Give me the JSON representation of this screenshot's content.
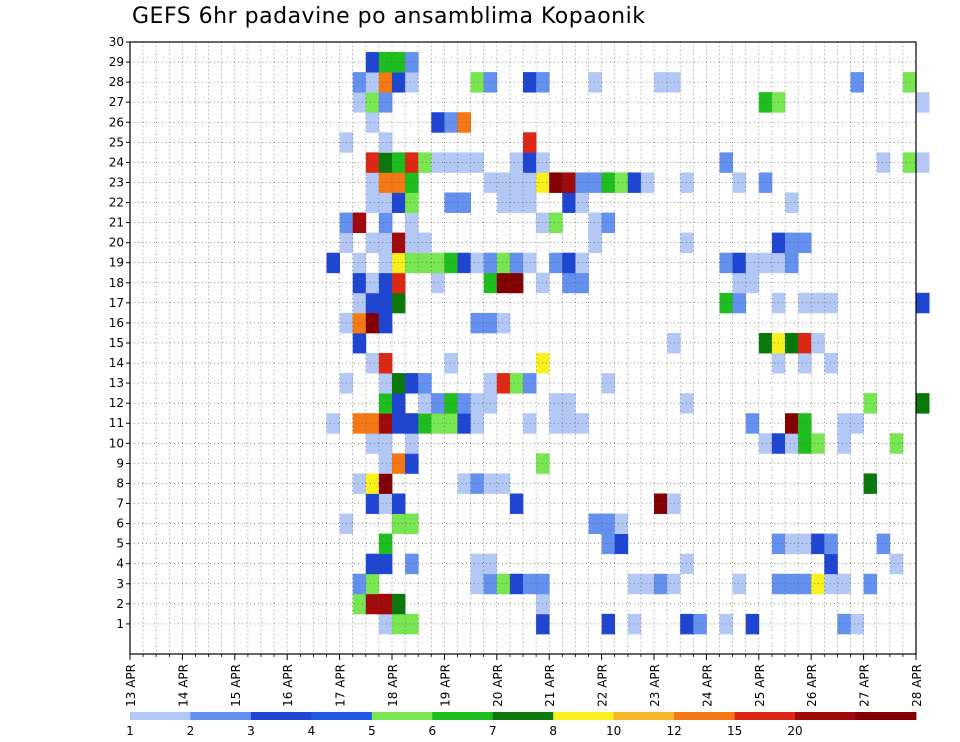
{
  "title": "GEFS 6hr padavine po ansamblima Kopaonik",
  "chart_data": {
    "type": "heatmap",
    "title": "GEFS 6hr padavine po ansamblima Kopaonik",
    "x_tick_labels": [
      "13 APR",
      "14 APR",
      "15 APR",
      "16 APR",
      "17 APR",
      "18 APR",
      "19 APR",
      "20 APR",
      "21 APR",
      "22 APR",
      "23 APR",
      "24 APR",
      "25 APR",
      "26 APR",
      "27 APR",
      "28 APR"
    ],
    "y_tick_labels": [
      "1",
      "2",
      "3",
      "4",
      "5",
      "6",
      "7",
      "8",
      "9",
      "10",
      "11",
      "12",
      "13",
      "14",
      "15",
      "16",
      "17",
      "18",
      "19",
      "20",
      "21",
      "22",
      "23",
      "24",
      "25",
      "26",
      "27",
      "28",
      "29",
      "30"
    ],
    "x_steps_per_day": 4,
    "grid": true,
    "colorbar": {
      "labels": [
        "1",
        "2",
        "3",
        "4",
        "5",
        "6",
        "7",
        "8",
        "10",
        "12",
        "15",
        "20"
      ],
      "colors": [
        "#b4c8f5",
        "#6490f0",
        "#1e46d2",
        "#1e5ae6",
        "#78e650",
        "#1ebe1e",
        "#0a780a",
        "#faf01e",
        "#fab428",
        "#f57814",
        "#dc2814",
        "#a00a0a",
        "#820000"
      ]
    },
    "cells": [
      [
        1,
        19,
        1
      ],
      [
        1,
        20,
        5
      ],
      [
        1,
        21,
        5
      ],
      [
        1,
        31,
        3
      ],
      [
        1,
        36,
        3
      ],
      [
        1,
        38,
        1
      ],
      [
        1,
        42,
        3
      ],
      [
        1,
        43,
        2
      ],
      [
        1,
        45,
        1
      ],
      [
        1,
        47,
        3
      ],
      [
        1,
        54,
        2
      ],
      [
        1,
        55,
        1
      ],
      [
        2,
        17,
        5
      ],
      [
        2,
        18,
        12
      ],
      [
        2,
        19,
        12
      ],
      [
        2,
        20,
        7
      ],
      [
        2,
        31,
        1
      ],
      [
        3,
        17,
        2
      ],
      [
        3,
        18,
        5
      ],
      [
        3,
        26,
        1
      ],
      [
        3,
        27,
        2
      ],
      [
        3,
        28,
        5
      ],
      [
        3,
        29,
        3
      ],
      [
        3,
        30,
        2
      ],
      [
        3,
        31,
        2
      ],
      [
        3,
        38,
        1
      ],
      [
        3,
        39,
        1
      ],
      [
        3,
        40,
        2
      ],
      [
        3,
        41,
        1
      ],
      [
        3,
        46,
        1
      ],
      [
        3,
        49,
        2
      ],
      [
        3,
        50,
        2
      ],
      [
        3,
        51,
        2
      ],
      [
        3,
        52,
        8
      ],
      [
        3,
        53,
        1
      ],
      [
        3,
        54,
        1
      ],
      [
        3,
        56,
        2
      ],
      [
        4,
        18,
        3
      ],
      [
        4,
        19,
        3
      ],
      [
        4,
        21,
        2
      ],
      [
        4,
        26,
        1
      ],
      [
        4,
        27,
        1
      ],
      [
        4,
        42,
        1
      ],
      [
        4,
        53,
        3
      ],
      [
        4,
        58,
        1
      ],
      [
        5,
        19,
        6
      ],
      [
        5,
        36,
        2
      ],
      [
        5,
        37,
        3
      ],
      [
        5,
        49,
        2
      ],
      [
        5,
        50,
        1
      ],
      [
        5,
        51,
        1
      ],
      [
        5,
        52,
        3
      ],
      [
        5,
        53,
        2
      ],
      [
        5,
        57,
        2
      ],
      [
        6,
        16,
        1
      ],
      [
        6,
        20,
        5
      ],
      [
        6,
        21,
        5
      ],
      [
        6,
        35,
        2
      ],
      [
        6,
        36,
        2
      ],
      [
        6,
        37,
        1
      ],
      [
        7,
        18,
        3
      ],
      [
        7,
        19,
        1
      ],
      [
        7,
        20,
        3
      ],
      [
        7,
        29,
        3
      ],
      [
        7,
        40,
        13
      ],
      [
        7,
        41,
        1
      ],
      [
        8,
        17,
        1
      ],
      [
        8,
        18,
        8
      ],
      [
        8,
        19,
        13
      ],
      [
        8,
        25,
        1
      ],
      [
        8,
        26,
        2
      ],
      [
        8,
        27,
        1
      ],
      [
        8,
        28,
        1
      ],
      [
        8,
        56,
        7
      ],
      [
        9,
        19,
        1
      ],
      [
        9,
        20,
        10
      ],
      [
        9,
        21,
        3
      ],
      [
        9,
        31,
        5
      ],
      [
        10,
        18,
        1
      ],
      [
        10,
        19,
        1
      ],
      [
        10,
        21,
        1
      ],
      [
        10,
        48,
        1
      ],
      [
        10,
        49,
        3
      ],
      [
        10,
        50,
        1
      ],
      [
        10,
        51,
        6
      ],
      [
        10,
        52,
        5
      ],
      [
        10,
        54,
        1
      ],
      [
        10,
        58,
        5
      ],
      [
        11,
        15,
        1
      ],
      [
        11,
        17,
        10
      ],
      [
        11,
        18,
        10
      ],
      [
        11,
        19,
        12
      ],
      [
        11,
        20,
        3
      ],
      [
        11,
        21,
        3
      ],
      [
        11,
        22,
        6
      ],
      [
        11,
        23,
        5
      ],
      [
        11,
        24,
        5
      ],
      [
        11,
        25,
        3
      ],
      [
        11,
        26,
        1
      ],
      [
        11,
        30,
        1
      ],
      [
        11,
        32,
        1
      ],
      [
        11,
        33,
        1
      ],
      [
        11,
        34,
        1
      ],
      [
        11,
        47,
        2
      ],
      [
        11,
        50,
        13
      ],
      [
        11,
        51,
        6
      ],
      [
        11,
        54,
        1
      ],
      [
        11,
        55,
        1
      ],
      [
        12,
        19,
        6
      ],
      [
        12,
        20,
        3
      ],
      [
        12,
        22,
        1
      ],
      [
        12,
        23,
        2
      ],
      [
        12,
        24,
        6
      ],
      [
        12,
        25,
        2
      ],
      [
        12,
        26,
        1
      ],
      [
        12,
        27,
        1
      ],
      [
        12,
        32,
        1
      ],
      [
        12,
        33,
        1
      ],
      [
        12,
        42,
        1
      ],
      [
        12,
        56,
        5
      ],
      [
        12,
        60,
        7
      ],
      [
        13,
        16,
        1
      ],
      [
        13,
        19,
        1
      ],
      [
        13,
        20,
        7
      ],
      [
        13,
        21,
        3
      ],
      [
        13,
        22,
        2
      ],
      [
        13,
        27,
        1
      ],
      [
        13,
        28,
        11
      ],
      [
        13,
        29,
        5
      ],
      [
        13,
        30,
        2
      ],
      [
        13,
        36,
        1
      ],
      [
        14,
        18,
        1
      ],
      [
        14,
        19,
        11
      ],
      [
        14,
        24,
        1
      ],
      [
        14,
        31,
        8
      ],
      [
        14,
        49,
        1
      ],
      [
        14,
        51,
        1
      ],
      [
        14,
        53,
        1
      ],
      [
        15,
        17,
        3
      ],
      [
        15,
        41,
        1
      ],
      [
        15,
        48,
        7
      ],
      [
        15,
        49,
        8
      ],
      [
        15,
        50,
        7
      ],
      [
        15,
        51,
        11
      ],
      [
        15,
        52,
        1
      ],
      [
        16,
        16,
        1
      ],
      [
        16,
        17,
        10
      ],
      [
        16,
        18,
        13
      ],
      [
        16,
        19,
        3
      ],
      [
        16,
        26,
        2
      ],
      [
        16,
        27,
        2
      ],
      [
        16,
        28,
        1
      ],
      [
        17,
        17,
        1
      ],
      [
        17,
        18,
        3
      ],
      [
        17,
        19,
        3
      ],
      [
        17,
        20,
        7
      ],
      [
        17,
        45,
        6
      ],
      [
        17,
        46,
        2
      ],
      [
        17,
        49,
        1
      ],
      [
        17,
        51,
        1
      ],
      [
        17,
        52,
        1
      ],
      [
        17,
        53,
        1
      ],
      [
        17,
        60,
        3
      ],
      [
        18,
        17,
        3
      ],
      [
        18,
        18,
        1
      ],
      [
        18,
        19,
        3
      ],
      [
        18,
        20,
        11
      ],
      [
        18,
        23,
        1
      ],
      [
        18,
        27,
        6
      ],
      [
        18,
        28,
        13
      ],
      [
        18,
        29,
        13
      ],
      [
        18,
        31,
        1
      ],
      [
        18,
        33,
        2
      ],
      [
        18,
        34,
        2
      ],
      [
        18,
        46,
        1
      ],
      [
        18,
        47,
        1
      ],
      [
        19,
        15,
        3
      ],
      [
        19,
        17,
        1
      ],
      [
        19,
        19,
        1
      ],
      [
        19,
        20,
        8
      ],
      [
        19,
        21,
        5
      ],
      [
        19,
        22,
        5
      ],
      [
        19,
        23,
        5
      ],
      [
        19,
        24,
        6
      ],
      [
        19,
        25,
        3
      ],
      [
        19,
        26,
        1
      ],
      [
        19,
        27,
        2
      ],
      [
        19,
        28,
        5
      ],
      [
        19,
        29,
        2
      ],
      [
        19,
        30,
        1
      ],
      [
        19,
        32,
        2
      ],
      [
        19,
        33,
        3
      ],
      [
        19,
        34,
        1
      ],
      [
        19,
        45,
        2
      ],
      [
        19,
        46,
        3
      ],
      [
        19,
        47,
        1
      ],
      [
        19,
        48,
        1
      ],
      [
        19,
        49,
        1
      ],
      [
        19,
        50,
        2
      ],
      [
        20,
        16,
        1
      ],
      [
        20,
        18,
        1
      ],
      [
        20,
        19,
        1
      ],
      [
        20,
        20,
        12
      ],
      [
        20,
        21,
        1
      ],
      [
        20,
        22,
        1
      ],
      [
        20,
        35,
        1
      ],
      [
        20,
        42,
        1
      ],
      [
        20,
        49,
        3
      ],
      [
        20,
        50,
        2
      ],
      [
        20,
        51,
        2
      ],
      [
        21,
        16,
        2
      ],
      [
        21,
        17,
        12
      ],
      [
        21,
        19,
        2
      ],
      [
        21,
        21,
        1
      ],
      [
        21,
        31,
        1
      ],
      [
        21,
        32,
        5
      ],
      [
        21,
        35,
        1
      ],
      [
        21,
        36,
        2
      ],
      [
        22,
        18,
        1
      ],
      [
        22,
        19,
        1
      ],
      [
        22,
        20,
        3
      ],
      [
        22,
        21,
        5
      ],
      [
        22,
        24,
        2
      ],
      [
        22,
        25,
        2
      ],
      [
        22,
        28,
        1
      ],
      [
        22,
        29,
        1
      ],
      [
        22,
        30,
        1
      ],
      [
        22,
        33,
        3
      ],
      [
        22,
        34,
        1
      ],
      [
        22,
        50,
        1
      ],
      [
        23,
        18,
        1
      ],
      [
        23,
        19,
        10
      ],
      [
        23,
        20,
        10
      ],
      [
        23,
        21,
        6
      ],
      [
        23,
        27,
        1
      ],
      [
        23,
        28,
        1
      ],
      [
        23,
        29,
        1
      ],
      [
        23,
        30,
        1
      ],
      [
        23,
        31,
        8
      ],
      [
        23,
        32,
        13
      ],
      [
        23,
        33,
        12
      ],
      [
        23,
        34,
        2
      ],
      [
        23,
        35,
        2
      ],
      [
        23,
        36,
        6
      ],
      [
        23,
        37,
        5
      ],
      [
        23,
        38,
        3
      ],
      [
        23,
        39,
        1
      ],
      [
        23,
        42,
        1
      ],
      [
        23,
        46,
        1
      ],
      [
        23,
        48,
        2
      ],
      [
        24,
        18,
        11
      ],
      [
        24,
        19,
        7
      ],
      [
        24,
        20,
        6
      ],
      [
        24,
        21,
        11
      ],
      [
        24,
        22,
        5
      ],
      [
        24,
        23,
        1
      ],
      [
        24,
        24,
        1
      ],
      [
        24,
        25,
        1
      ],
      [
        24,
        26,
        1
      ],
      [
        24,
        29,
        1
      ],
      [
        24,
        30,
        3
      ],
      [
        24,
        31,
        1
      ],
      [
        24,
        45,
        2
      ],
      [
        24,
        57,
        1
      ],
      [
        24,
        59,
        5
      ],
      [
        24,
        60,
        1
      ],
      [
        25,
        16,
        1
      ],
      [
        25,
        19,
        1
      ],
      [
        25,
        30,
        11
      ],
      [
        26,
        18,
        1
      ],
      [
        26,
        23,
        3
      ],
      [
        26,
        24,
        2
      ],
      [
        26,
        25,
        10
      ],
      [
        27,
        17,
        1
      ],
      [
        27,
        18,
        5
      ],
      [
        27,
        19,
        2
      ],
      [
        27,
        48,
        6
      ],
      [
        27,
        49,
        5
      ],
      [
        27,
        60,
        1
      ],
      [
        28,
        17,
        2
      ],
      [
        28,
        18,
        1
      ],
      [
        28,
        19,
        10
      ],
      [
        28,
        20,
        3
      ],
      [
        28,
        21,
        1
      ],
      [
        28,
        26,
        5
      ],
      [
        28,
        27,
        2
      ],
      [
        28,
        30,
        3
      ],
      [
        28,
        31,
        2
      ],
      [
        28,
        35,
        1
      ],
      [
        28,
        40,
        1
      ],
      [
        28,
        41,
        1
      ],
      [
        28,
        55,
        2
      ],
      [
        28,
        59,
        5
      ],
      [
        29,
        18,
        3
      ],
      [
        29,
        19,
        6
      ],
      [
        29,
        20,
        6
      ],
      [
        29,
        21,
        2
      ]
    ]
  }
}
